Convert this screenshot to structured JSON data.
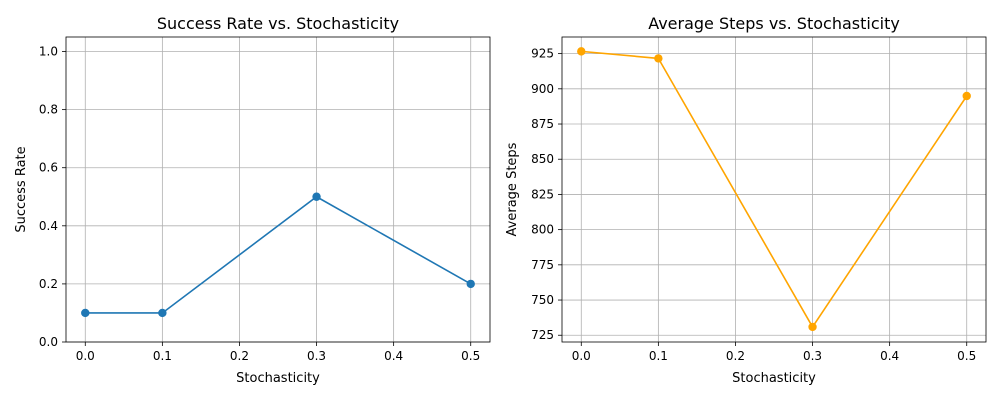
{
  "chart_data": [
    {
      "type": "line",
      "title": "Success Rate vs. Stochasticity",
      "xlabel": "Stochasticity",
      "ylabel": "Success Rate",
      "xlim": [
        -0.025,
        0.525
      ],
      "ylim": [
        0.0,
        1.05
      ],
      "xticks": [
        0.0,
        0.1,
        0.2,
        0.3,
        0.4,
        0.5
      ],
      "xtick_labels": [
        "0.0",
        "0.1",
        "0.2",
        "0.3",
        "0.4",
        "0.5"
      ],
      "yticks": [
        0.0,
        0.2,
        0.4,
        0.6,
        0.8,
        1.0
      ],
      "ytick_labels": [
        "0.0",
        "0.2",
        "0.4",
        "0.6",
        "0.8",
        "1.0"
      ],
      "grid": true,
      "series": [
        {
          "x": [
            0.0,
            0.1,
            0.3,
            0.5
          ],
          "values": [
            0.1,
            0.1,
            0.5,
            0.2
          ],
          "color": "#1f77b4",
          "marker": "circle"
        }
      ]
    },
    {
      "type": "line",
      "title": "Average Steps vs. Stochasticity",
      "xlabel": "Stochasticity",
      "ylabel": "Average Steps",
      "xlim": [
        -0.025,
        0.525
      ],
      "ylim": [
        720.2,
        936.8
      ],
      "xticks": [
        0.0,
        0.1,
        0.2,
        0.3,
        0.4,
        0.5
      ],
      "xtick_labels": [
        "0.0",
        "0.1",
        "0.2",
        "0.3",
        "0.4",
        "0.5"
      ],
      "yticks": [
        725,
        750,
        775,
        800,
        825,
        850,
        875,
        900,
        925
      ],
      "ytick_labels": [
        "725",
        "750",
        "775",
        "800",
        "825",
        "850",
        "875",
        "900",
        "925"
      ],
      "grid": true,
      "series": [
        {
          "x": [
            0.0,
            0.1,
            0.3,
            0.5
          ],
          "values": [
            926.6,
            921.6,
            730.9,
            894.9
          ],
          "color": "#ffa500",
          "marker": "circle"
        }
      ]
    }
  ]
}
